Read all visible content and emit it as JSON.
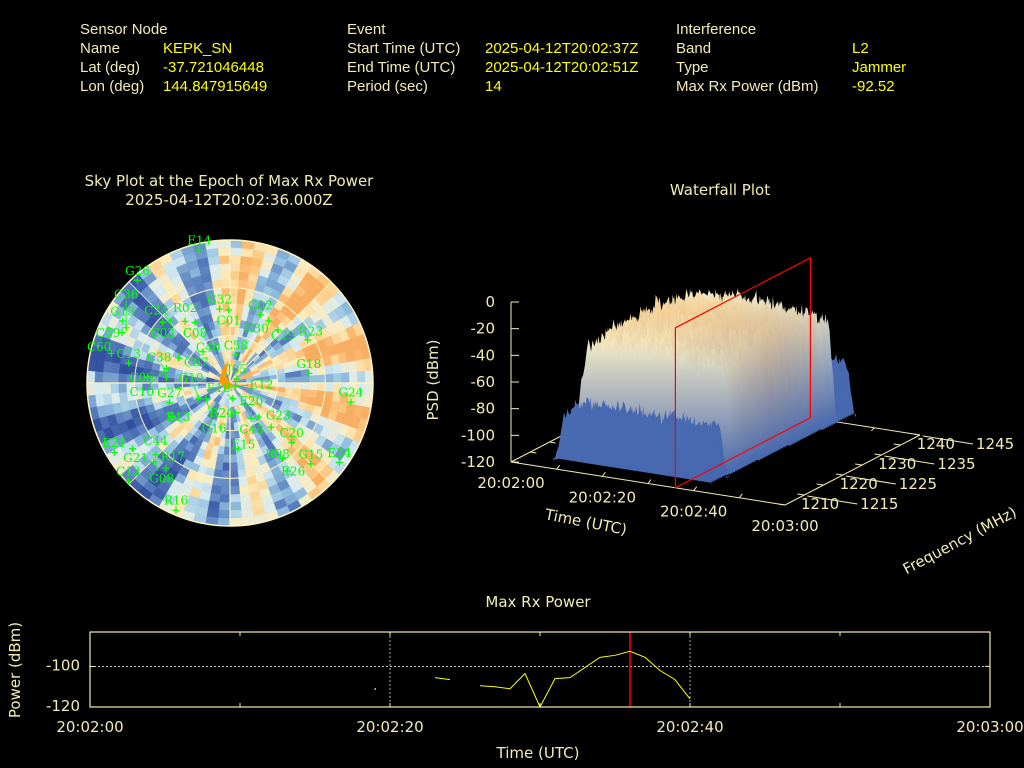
{
  "header": {
    "sensor": {
      "title": "Sensor Node",
      "name_label": "Name",
      "name": "KEPK_SN",
      "lat_label": "Lat (deg)",
      "lat": "-37.721046448",
      "lon_label": "Lon (deg)",
      "lon": "144.847915649"
    },
    "event": {
      "title": "Event",
      "start_label": "Start Time (UTC)",
      "start": "2025-04-12T20:02:37Z",
      "end_label": "End Time (UTC)",
      "end": "2025-04-12T20:02:51Z",
      "period_label": "Period (sec)",
      "period": "14"
    },
    "interference": {
      "title": "Interference",
      "band_label": "Band",
      "band": "L2",
      "type_label": "Type",
      "type": "Jammer",
      "power_label": "Max Rx Power (dBm)",
      "power": "-92.52"
    }
  },
  "colors": {
    "label": "#f2ecb4",
    "value": "#ffff00",
    "satellite": "#00ff00",
    "marker": "#ff0000",
    "trace": "#ffff00"
  },
  "chart_data": [
    {
      "type": "scatter",
      "projection": "polar-sky",
      "title": "Sky Plot at the Epoch of Max Rx Power",
      "subtitle": "2025-04-12T20:02:36.000Z",
      "elevation_rings": [
        0,
        30,
        60
      ],
      "background": "heatmap",
      "satellites": [
        {
          "id": "E14",
          "az": 347,
          "el": 4
        },
        {
          "id": "G26",
          "az": 318,
          "el": 3
        },
        {
          "id": "G32",
          "az": 352,
          "el": 43
        },
        {
          "id": "C01",
          "az": 359,
          "el": 44
        },
        {
          "id": "R02",
          "az": 324,
          "el": 42
        },
        {
          "id": "C03",
          "az": 312,
          "el": 33
        },
        {
          "id": "C24",
          "az": 316,
          "el": 36
        },
        {
          "id": "C08",
          "az": 330,
          "el": 46
        },
        {
          "id": "G02",
          "az": 24,
          "el": 43
        },
        {
          "id": "C30",
          "az": 32,
          "el": 44
        },
        {
          "id": "C29",
          "az": 42,
          "el": 45
        },
        {
          "id": "R23",
          "az": 61,
          "el": 34
        },
        {
          "id": "G18",
          "az": 83,
          "el": 40
        },
        {
          "id": "G24",
          "az": 99,
          "el": 13
        },
        {
          "id": "E34",
          "az": 126,
          "el": 5
        },
        {
          "id": "G15",
          "az": 135,
          "el": 18
        },
        {
          "id": "R08",
          "az": 145,
          "el": 32
        },
        {
          "id": "E26",
          "az": 147,
          "el": 24
        },
        {
          "id": "C20",
          "az": 134,
          "el": 36
        },
        {
          "id": "G23",
          "az": 137,
          "el": 52
        },
        {
          "id": "C48",
          "az": 140,
          "el": 62
        },
        {
          "id": "E20",
          "az": 149,
          "el": 64
        },
        {
          "id": "R24",
          "az": 169,
          "el": 71
        },
        {
          "id": "E18",
          "az": 170,
          "el": 80
        },
        {
          "id": "E15",
          "az": 173,
          "el": 48
        },
        {
          "id": "R16",
          "az": 203,
          "el": 3
        },
        {
          "id": "C12",
          "az": 226,
          "el": 1
        },
        {
          "id": "E21",
          "az": 239,
          "el": 5
        },
        {
          "id": "G21",
          "az": 236,
          "el": 16
        },
        {
          "id": "C44",
          "az": 226,
          "el": 25
        },
        {
          "id": "G08",
          "az": 224,
          "el": 21
        },
        {
          "id": "R17",
          "az": 217,
          "el": 23
        },
        {
          "id": "E13",
          "az": 240,
          "el": 48
        },
        {
          "id": "G27",
          "az": 252,
          "el": 50
        },
        {
          "id": "G10",
          "az": 244,
          "el": 68
        },
        {
          "id": "G16",
          "az": 236,
          "el": 72
        },
        {
          "id": "C38",
          "az": 275,
          "el": 50
        },
        {
          "id": "C06",
          "az": 274,
          "el": 38
        },
        {
          "id": "C07",
          "az": 296,
          "el": 54
        },
        {
          "id": "C10",
          "az": 283,
          "el": 49
        },
        {
          "id": "C40",
          "az": 319,
          "el": 64
        },
        {
          "id": "C58",
          "az": 12,
          "el": 72
        },
        {
          "id": "C13",
          "az": 281,
          "el": 25
        },
        {
          "id": "C60",
          "az": 284,
          "el": 13
        },
        {
          "id": "C59",
          "az": 295,
          "el": 15
        },
        {
          "id": "G13",
          "az": 300,
          "el": 12
        },
        {
          "id": "C36",
          "az": 298,
          "el": 16
        },
        {
          "id": "J05",
          "az": 60,
          "el": 85
        },
        {
          "id": "E12",
          "az": 120,
          "el": 86
        }
      ]
    },
    {
      "type": "surface",
      "title": "Waterfall Plot",
      "xlabel": "Time (UTC)",
      "ylabel": "Frequency (MHz)",
      "zlabel": "PSD (dBm)",
      "x_ticks": [
        "20:02:00",
        "20:02:20",
        "20:02:40",
        "20:03:00"
      ],
      "y_ticks": [
        "1210",
        "1215",
        "1220",
        "1225",
        "1230",
        "1235",
        "1240",
        "1245"
      ],
      "z_ticks": [
        "0",
        "-20",
        "-40",
        "-60",
        "-80",
        "-100",
        "-120"
      ],
      "xlim": [
        "20:02:00",
        "20:03:00"
      ],
      "ylim": [
        1210,
        1245
      ],
      "zlim": [
        -120,
        0
      ],
      "marker_time": "20:02:36"
    },
    {
      "type": "line",
      "title": "Max Rx Power",
      "xlabel": "Time (UTC)",
      "ylabel": "Power (dBm)",
      "x_ticks": [
        "20:02:00",
        "20:02:20",
        "20:02:40",
        "20:03:00"
      ],
      "y_ticks": [
        "-100",
        "-120"
      ],
      "xlim": [
        "20:02:00",
        "20:03:00"
      ],
      "ylim": [
        -120,
        -83
      ],
      "grid": true,
      "marker_time": "20:02:36",
      "segments": [
        [
          [
            "20:02:19",
            -111
          ]
        ],
        [
          [
            "20:02:23",
            -105.5
          ],
          [
            "20:02:24",
            -106.5
          ]
        ],
        [
          [
            "20:02:26",
            -109.5
          ],
          [
            "20:02:27",
            -110
          ],
          [
            "20:02:28",
            -111
          ],
          [
            "20:02:29",
            -103.5
          ],
          [
            "20:02:30",
            -120
          ],
          [
            "20:02:31",
            -106
          ],
          [
            "20:02:32",
            -105.5
          ],
          [
            "20:02:34",
            -95.5
          ],
          [
            "20:02:35",
            -94.5
          ],
          [
            "20:02:36",
            -92.5
          ],
          [
            "20:02:37",
            -95.5
          ],
          [
            "20:02:38",
            -102
          ],
          [
            "20:02:39",
            -106.5
          ],
          [
            "20:02:40",
            -116
          ]
        ]
      ]
    }
  ]
}
